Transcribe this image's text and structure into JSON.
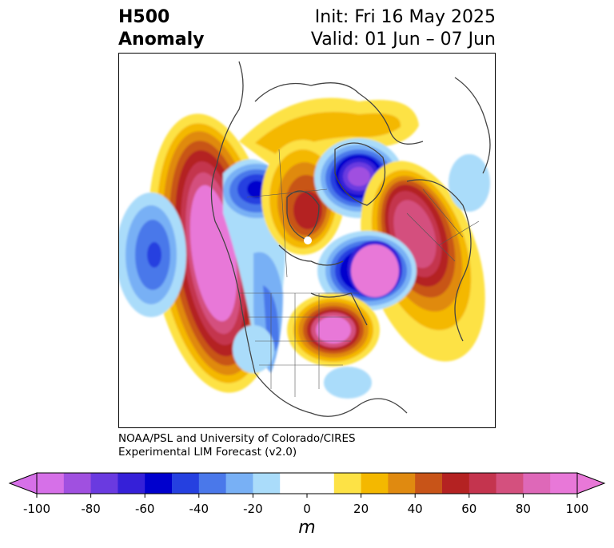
{
  "title": {
    "left_line1": "H500",
    "left_line2": "Anomaly",
    "right_line1": "Init: Fri 16 May 2025",
    "right_line2": "Valid: 01 Jun – 07 Jun"
  },
  "credit": {
    "line1": "NOAA/PSL and University of Colorado/CIRES",
    "line2": "Experimental LIM Forecast (v2.0)"
  },
  "colorbar": {
    "label": "m",
    "ticks": [
      "-100",
      "-80",
      "-60",
      "-40",
      "-20",
      "0",
      "20",
      "40",
      "60",
      "80",
      "100"
    ],
    "bins": [
      {
        "from": -100,
        "to": -90,
        "color": "#d670e8"
      },
      {
        "from": -90,
        "to": -80,
        "color": "#a050e0"
      },
      {
        "from": -80,
        "to": -70,
        "color": "#6a3ae0"
      },
      {
        "from": -70,
        "to": -60,
        "color": "#3520d8"
      },
      {
        "from": -60,
        "to": -50,
        "color": "#0000cd"
      },
      {
        "from": -50,
        "to": -40,
        "color": "#2540e0"
      },
      {
        "from": -40,
        "to": -30,
        "color": "#4a78ea"
      },
      {
        "from": -30,
        "to": -20,
        "color": "#78b0f5"
      },
      {
        "from": -20,
        "to": -10,
        "color": "#aadcfa"
      },
      {
        "from": -10,
        "to": 10,
        "color": "#ffffff"
      },
      {
        "from": 10,
        "to": 20,
        "color": "#fde245"
      },
      {
        "from": 20,
        "to": 30,
        "color": "#f4b800"
      },
      {
        "from": 30,
        "to": 40,
        "color": "#e08a10"
      },
      {
        "from": 40,
        "to": 50,
        "color": "#c85418"
      },
      {
        "from": 50,
        "to": 60,
        "color": "#b42222"
      },
      {
        "from": 60,
        "to": 70,
        "color": "#c4344e"
      },
      {
        "from": 70,
        "to": 80,
        "color": "#d4507e"
      },
      {
        "from": 80,
        "to": 90,
        "color": "#de68b8"
      },
      {
        "from": 90,
        "to": 100,
        "color": "#e878d8"
      }
    ],
    "extend_low_color": "#d670e8",
    "extend_high_color": "#e878d8"
  }
}
